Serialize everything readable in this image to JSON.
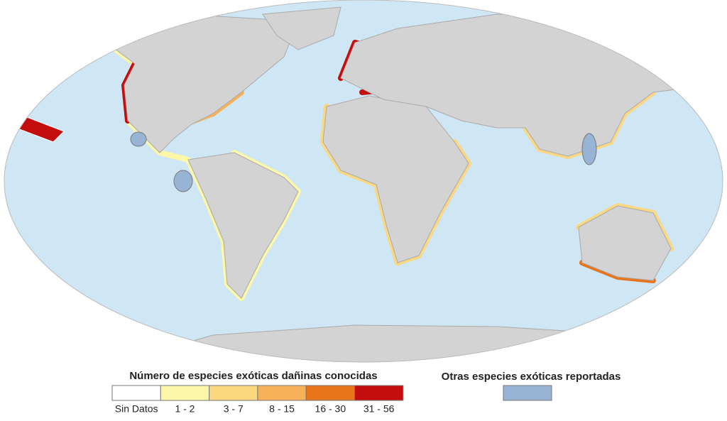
{
  "legend": {
    "title": "Número de especies exóticas dañinas conocidas",
    "classes": [
      {
        "label": "Sin Datos",
        "color": "#ffffff"
      },
      {
        "label": "1 - 2",
        "color": "#fdf7a8"
      },
      {
        "label": "3 - 7",
        "color": "#fbd77f"
      },
      {
        "label": "8 - 15",
        "color": "#f7b158"
      },
      {
        "label": "16 - 30",
        "color": "#e8741c"
      },
      {
        "label": "31 - 56",
        "color": "#c40d0d"
      }
    ]
  },
  "other_legend": {
    "title": "Otras especies exóticas reportadas",
    "color": "#98b4d4"
  }
}
